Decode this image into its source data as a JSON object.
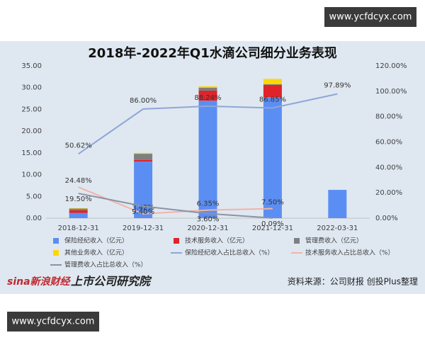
{
  "watermark_top": "www.ycfdcyx.com",
  "watermark_bottom": "www.ycfdcyx.com",
  "chart_data": {
    "type": "bar",
    "title": "2018年-2022年Q1水滴公司细分业务表现",
    "categories": [
      "2018-12-31",
      "2019-12-31",
      "2020-12-31",
      "2021-12-31",
      "2022-03-31"
    ],
    "ylim": [
      0,
      35
    ],
    "yticks": [
      {
        "value": 0,
        "label": "0.00"
      },
      {
        "value": 5,
        "label": "5.00"
      },
      {
        "value": 10,
        "label": "10.00"
      },
      {
        "value": 15,
        "label": "15.00"
      },
      {
        "value": 20,
        "label": "20.00"
      },
      {
        "value": 25,
        "label": "25.00"
      },
      {
        "value": 30,
        "label": "30.00"
      },
      {
        "value": 35,
        "label": "35.00"
      }
    ],
    "y2lim": [
      0,
      120
    ],
    "y2ticks": [
      {
        "value": 0,
        "label": "0.00%"
      },
      {
        "value": 20,
        "label": "20.00%"
      },
      {
        "value": 40,
        "label": "40.00%"
      },
      {
        "value": 60,
        "label": "60.00%"
      },
      {
        "value": 80,
        "label": "80.00%"
      },
      {
        "value": 100,
        "label": "100.00%"
      },
      {
        "value": 120,
        "label": "120.00%"
      }
    ],
    "series": [
      {
        "name": "保险经纪收入（亿元）",
        "type": "bar",
        "color": "#5b8ef2",
        "values": [
          1.2,
          13.0,
          27.0,
          27.8,
          6.5
        ]
      },
      {
        "name": "技术服务收入（亿元）",
        "type": "bar",
        "color": "#e0232a",
        "values": [
          0.6,
          0.4,
          2.3,
          2.8,
          0
        ]
      },
      {
        "name": "管理费收入（亿元）",
        "type": "bar",
        "color": "#7f7f7f",
        "values": [
          0.4,
          1.4,
          0.7,
          0.2,
          0
        ]
      },
      {
        "name": "其他业务收入（亿元）",
        "type": "bar",
        "color": "#ffd700",
        "values": [
          0.1,
          0.2,
          0.3,
          1.2,
          0
        ]
      },
      {
        "name": "保险经纪收入占比总收入（%）",
        "type": "line",
        "axis": "y2",
        "color": "#8fa6d6",
        "values": [
          50.62,
          86.0,
          88.24,
          86.85,
          97.89
        ],
        "value_labels": [
          "50.62%",
          "86.00%",
          "88.24%",
          "86.85%",
          "97.89%"
        ]
      },
      {
        "name": "技术服务收入占比总收入（%）",
        "type": "line",
        "axis": "y2",
        "color": "#f2b3a6",
        "values": [
          24.48,
          3.42,
          6.35,
          7.5,
          null
        ],
        "value_labels": [
          "24.48%",
          "3.42%",
          "6.35%",
          "7.50%",
          null
        ]
      },
      {
        "name": "管理费收入占比总收入（%）",
        "type": "line",
        "axis": "y2",
        "color": "#8a94a6",
        "values": [
          19.5,
          9.4,
          3.6,
          0.09,
          null
        ],
        "value_labels": [
          "19.50%",
          "9.40%",
          "3.60%",
          "0.09%",
          null
        ]
      }
    ]
  },
  "logo_sina": "sina新浪财经",
  "logo_institute": "上市公司研究院",
  "source": "资料来源：公司财报 创投Plus整理"
}
